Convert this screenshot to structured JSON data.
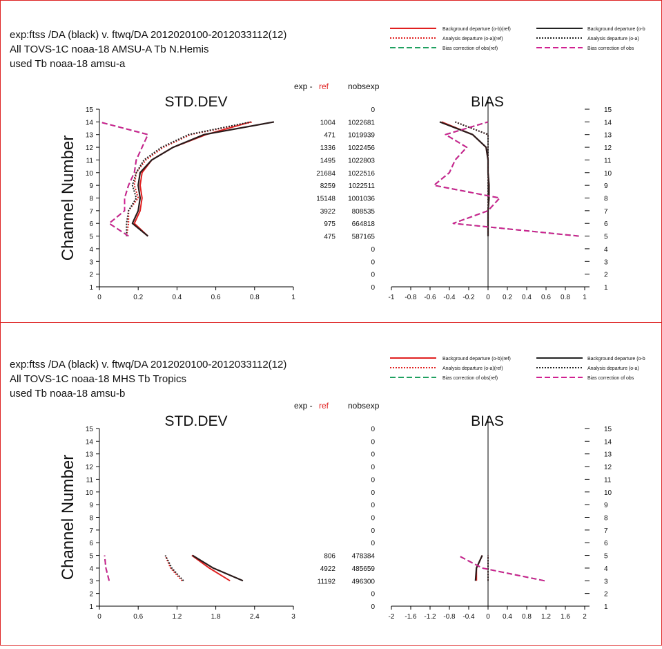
{
  "frame_color": "#dd2222",
  "legend": {
    "items_left": [
      {
        "label": "Background departure (o-b)(ref)",
        "color": "#e02020",
        "dash": "solid"
      },
      {
        "label": "Analysis departure (o-a)(ref)",
        "color": "#e02020",
        "dash": "dot"
      },
      {
        "label": "Bias correction of obs(ref)",
        "color": "#1fa060",
        "dash": "dash"
      }
    ],
    "items_right": [
      {
        "label": "Background departure (o-b",
        "color": "#222222",
        "dash": "solid"
      },
      {
        "label": "Analysis departure (o-a)",
        "color": "#222222",
        "dash": "dot"
      },
      {
        "label": "Bias correction of obs",
        "color": "#d02090",
        "dash": "dash"
      }
    ]
  },
  "panels": [
    {
      "header": {
        "line1": "exp:ftss /DA (black)  v. ftwq/DA 2012020100-2012033112(12)",
        "line2": "All TOVS-1C noaa-18 AMSU-A Tb  N.Hemis",
        "line3": "used Tb noaa-18 amsu-a"
      },
      "exp_label": "exp - ",
      "ref_label": "ref",
      "nobs_label": "nobsexp",
      "std_title": "STD.DEV",
      "bias_title": "BIAS",
      "ylabel": "Channel Number",
      "channel_ticks": [
        "1",
        "2",
        "3",
        "4",
        "5",
        "6",
        "7",
        "8",
        "9",
        "10",
        "11",
        "12",
        "13",
        "14",
        "15"
      ],
      "std_xticks": [
        "0",
        "0.2",
        "0.4",
        "0.6",
        "0.8",
        "1"
      ],
      "bias_xticks": [
        "-1",
        "-0.8",
        "-0.6",
        "-0.4",
        "-0.2",
        "0",
        "0.2",
        "0.4",
        "0.6",
        "0.8",
        "1"
      ],
      "diff_col": [
        "",
        "",
        "",
        "",
        "475",
        "975",
        "3922",
        "15148",
        "8259",
        "21684",
        "1495",
        "1336",
        "471",
        "1004",
        ""
      ],
      "nobs_col": [
        "0",
        "0",
        "0",
        "0",
        "587165",
        "664818",
        "808535",
        "1001036",
        "1022511",
        "1022516",
        "1022803",
        "1022456",
        "1019939",
        "1022681",
        "0"
      ]
    },
    {
      "header": {
        "line1": "exp:ftss /DA (black)  v. ftwq/DA 2012020100-2012033112(12)",
        "line2": "All TOVS-1C noaa-18 MHS Tb  Tropics",
        "line3": "used Tb noaa-18 amsu-b"
      },
      "exp_label": "exp - ",
      "ref_label": "ref",
      "nobs_label": "nobsexp",
      "std_title": "STD.DEV",
      "bias_title": "BIAS",
      "ylabel": "Channel Number",
      "channel_ticks": [
        "1",
        "2",
        "3",
        "4",
        "5",
        "6",
        "7",
        "8",
        "9",
        "10",
        "11",
        "12",
        "13",
        "14",
        "15"
      ],
      "std_xticks": [
        "0",
        "0.6",
        "1.2",
        "1.8",
        "2.4",
        "3"
      ],
      "bias_xticks": [
        "-2",
        "-1.6",
        "-1.2",
        "-0.8",
        "-0.4",
        "0",
        "0.4",
        "0.8",
        "1.2",
        "1.6",
        "2"
      ],
      "diff_col": [
        "",
        "",
        "11192",
        "4922",
        "806",
        "",
        "",
        "",
        "",
        "",
        "",
        "",
        "",
        "",
        ""
      ],
      "nobs_col": [
        "0",
        "0",
        "496300",
        "485659",
        "478384",
        "0",
        "0",
        "0",
        "0",
        "0",
        "0",
        "0",
        "0",
        "0",
        "0"
      ]
    }
  ],
  "chart_data": [
    {
      "type": "line",
      "title": "STD.DEV",
      "subtitle": "All TOVS-1C noaa-18 AMSU-A Tb  N.Hemis",
      "ylabel": "Channel Number",
      "xlim": [
        0,
        1
      ],
      "ylim": [
        1,
        15
      ],
      "channels": [
        5,
        6,
        7,
        8,
        9,
        10,
        11,
        12,
        13,
        14
      ],
      "series": [
        {
          "name": "Background departure (o-b)(ref)",
          "x": [
            0.25,
            0.18,
            0.21,
            0.22,
            0.21,
            0.22,
            0.27,
            0.38,
            0.55,
            0.78
          ]
        },
        {
          "name": "Background departure (o-b",
          "x": [
            0.25,
            0.17,
            0.2,
            0.21,
            0.2,
            0.21,
            0.27,
            0.38,
            0.54,
            0.9
          ]
        },
        {
          "name": "Analysis departure (o-a)(ref)",
          "x": [
            0.14,
            0.15,
            0.15,
            0.2,
            0.18,
            0.19,
            0.24,
            0.33,
            0.47,
            0.79
          ]
        },
        {
          "name": "Analysis departure (o-a)",
          "x": [
            0.14,
            0.14,
            0.15,
            0.19,
            0.17,
            0.19,
            0.23,
            0.32,
            0.46,
            0.78
          ]
        },
        {
          "name": "Bias correction of obs(ref)",
          "x": [
            0.15,
            0.05,
            0.13,
            0.13,
            0.15,
            0.18,
            0.19,
            0.22,
            0.25,
            0.0
          ]
        },
        {
          "name": "Bias correction of obs",
          "x": [
            0.15,
            0.05,
            0.13,
            0.13,
            0.15,
            0.18,
            0.19,
            0.22,
            0.25,
            0.0
          ]
        }
      ]
    },
    {
      "type": "line",
      "title": "BIAS",
      "subtitle": "All TOVS-1C noaa-18 AMSU-A Tb  N.Hemis",
      "xlim": [
        -1,
        1
      ],
      "ylim": [
        1,
        15
      ],
      "channels": [
        5,
        6,
        7,
        8,
        9,
        10,
        11,
        12,
        13,
        14
      ],
      "series": [
        {
          "name": "Background departure (o-b)(ref)",
          "x": [
            0.0,
            0.0,
            0.0,
            0.01,
            0.01,
            0.0,
            0.0,
            -0.02,
            -0.16,
            -0.48
          ]
        },
        {
          "name": "Background departure (o-b",
          "x": [
            0.0,
            0.0,
            0.0,
            0.01,
            0.01,
            0.0,
            0.0,
            -0.02,
            -0.16,
            -0.5
          ]
        },
        {
          "name": "Analysis departure (o-a)(ref)",
          "x": [
            0.0,
            0.0,
            0.0,
            0.0,
            0.0,
            0.0,
            0.0,
            0.0,
            0.0,
            -0.34
          ]
        },
        {
          "name": "Analysis departure (o-a)",
          "x": [
            0.0,
            0.0,
            0.0,
            0.0,
            0.0,
            0.0,
            0.0,
            0.0,
            0.0,
            -0.34
          ]
        },
        {
          "name": "Bias correction of obs(ref)",
          "x": [
            0.94,
            -0.36,
            0.0,
            0.12,
            -0.56,
            -0.4,
            -0.34,
            -0.22,
            -0.44,
            0.0
          ]
        },
        {
          "name": "Bias correction of obs",
          "x": [
            0.94,
            -0.36,
            0.0,
            0.12,
            -0.56,
            -0.4,
            -0.34,
            -0.22,
            -0.44,
            0.0
          ]
        }
      ]
    },
    {
      "type": "line",
      "title": "STD.DEV",
      "subtitle": "All TOVS-1C noaa-18 MHS Tb  Tropics",
      "ylabel": "Channel Number",
      "xlim": [
        0,
        3
      ],
      "ylim": [
        1,
        15
      ],
      "channels": [
        3,
        4,
        5
      ],
      "series": [
        {
          "name": "Background departure (o-b)(ref)",
          "x": [
            2.02,
            1.7,
            1.43
          ]
        },
        {
          "name": "Background departure (o-b",
          "x": [
            2.22,
            1.76,
            1.44
          ]
        },
        {
          "name": "Analysis departure (o-a)(ref)",
          "x": [
            1.28,
            1.1,
            1.02
          ]
        },
        {
          "name": "Analysis departure (o-a)",
          "x": [
            1.3,
            1.12,
            1.02
          ]
        },
        {
          "name": "Bias correction of obs(ref)",
          "x": [
            0.15,
            0.1,
            0.08
          ]
        },
        {
          "name": "Bias correction of obs",
          "x": [
            0.15,
            0.1,
            0.08
          ]
        }
      ]
    },
    {
      "type": "line",
      "title": "BIAS",
      "subtitle": "All TOVS-1C noaa-18 MHS Tb  Tropics",
      "xlim": [
        -2,
        2
      ],
      "ylim": [
        1,
        15
      ],
      "channels": [
        3,
        4,
        5
      ],
      "series": [
        {
          "name": "Background departure (o-b)(ref)",
          "x": [
            -0.24,
            -0.24,
            -0.12
          ]
        },
        {
          "name": "Background departure (o-b",
          "x": [
            -0.26,
            -0.24,
            -0.12
          ]
        },
        {
          "name": "Analysis departure (o-a)(ref)",
          "x": [
            0.0,
            0.0,
            0.0
          ]
        },
        {
          "name": "Analysis departure (o-a)",
          "x": [
            0.0,
            0.0,
            0.0
          ]
        },
        {
          "name": "Bias correction of obs(ref)",
          "x": [
            1.17,
            -0.12,
            -0.62
          ]
        },
        {
          "name": "Bias correction of obs",
          "x": [
            1.17,
            -0.12,
            -0.62
          ]
        }
      ]
    }
  ]
}
